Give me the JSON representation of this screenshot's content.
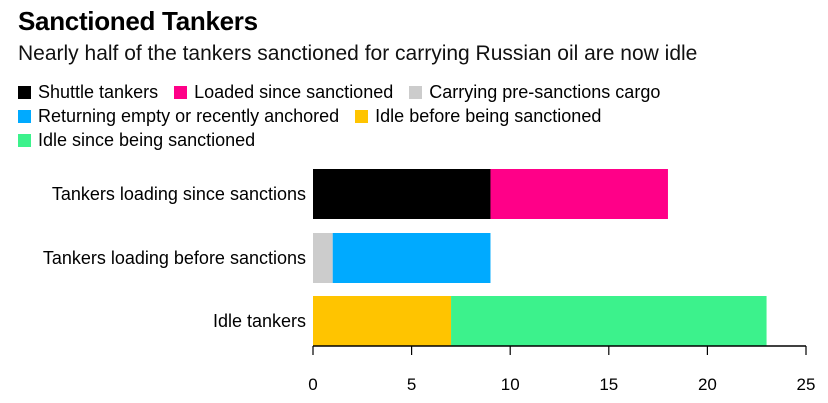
{
  "title": "Sanctioned Tankers",
  "subtitle": "Nearly half of the tankers sanctioned for carrying Russian oil are now idle",
  "legend": [
    {
      "label": "Shuttle tankers",
      "color": "#000000"
    },
    {
      "label": "Loaded since sanctioned",
      "color": "#ff0088"
    },
    {
      "label": "Carrying pre-sanctions cargo",
      "color": "#cccccc"
    },
    {
      "label": "Returning empty or recently anchored",
      "color": "#00aaff"
    },
    {
      "label": "Idle before being sanctioned",
      "color": "#ffc400"
    },
    {
      "label": "Idle since being sanctioned",
      "color": "#3cf28c"
    }
  ],
  "chart_data": {
    "type": "bar",
    "orientation": "horizontal",
    "stacked": true,
    "categories": [
      "Tankers loading since sanctions",
      "Tankers loading before sanctions",
      "Idle tankers"
    ],
    "series": [
      {
        "name": "Shuttle tankers",
        "color": "#000000",
        "values": [
          9,
          0,
          0
        ]
      },
      {
        "name": "Loaded since sanctioned",
        "color": "#ff0088",
        "values": [
          9,
          0,
          0
        ]
      },
      {
        "name": "Carrying pre-sanctions cargo",
        "color": "#cccccc",
        "values": [
          0,
          1,
          0
        ]
      },
      {
        "name": "Returning empty or recently anchored",
        "color": "#00aaff",
        "values": [
          0,
          8,
          0
        ]
      },
      {
        "name": "Idle before being sanctioned",
        "color": "#ffc400",
        "values": [
          0,
          0,
          7
        ]
      },
      {
        "name": "Idle since being sanctioned",
        "color": "#3cf28c",
        "values": [
          0,
          0,
          16
        ]
      }
    ],
    "xlim": [
      0,
      25
    ],
    "xticks": [
      "0",
      "5",
      "10",
      "15",
      "20",
      "25"
    ],
    "legend_position": "top-left",
    "grid": false
  }
}
